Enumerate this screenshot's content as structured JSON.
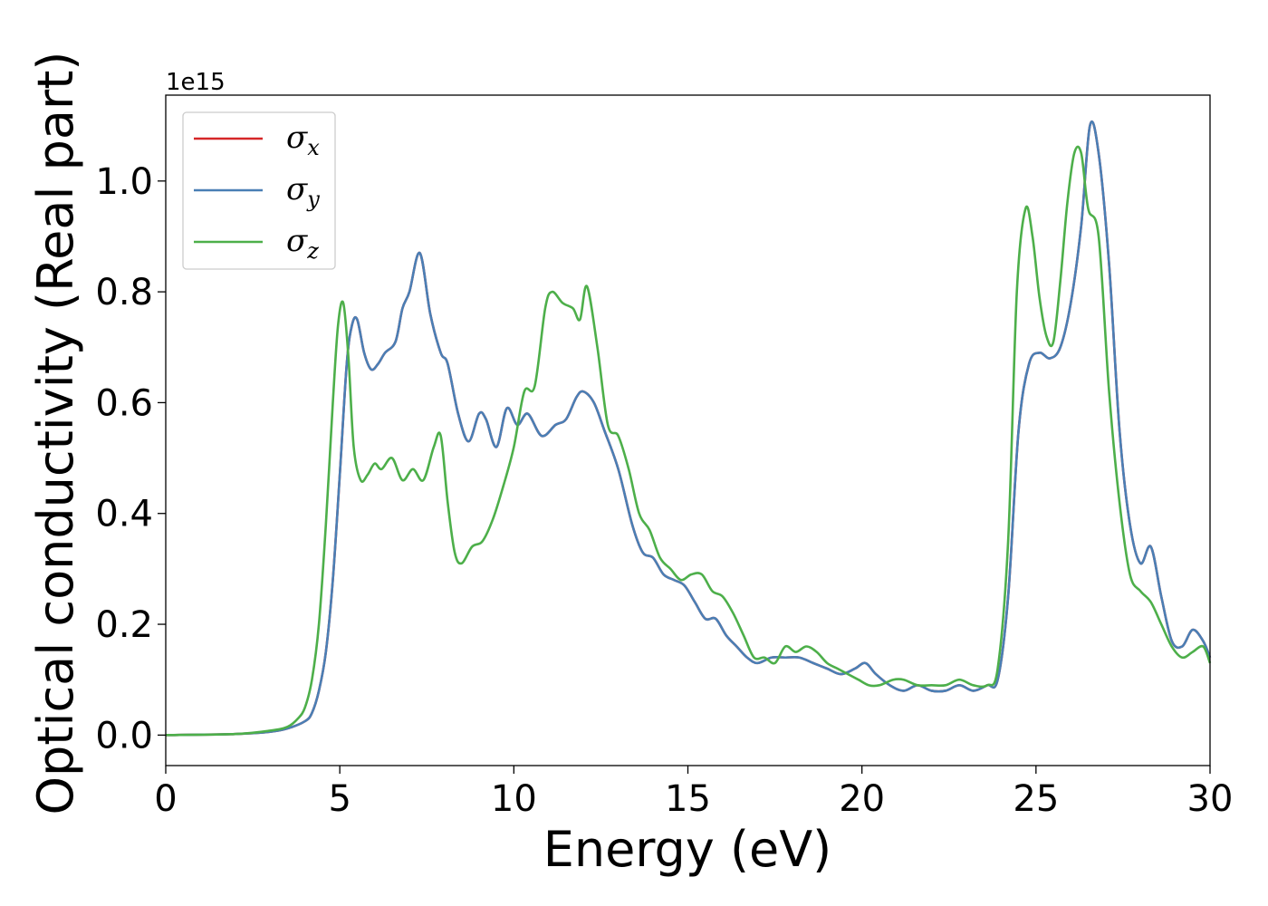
{
  "chart_data": {
    "type": "line",
    "title": "",
    "xlabel": "Energy (eV)",
    "ylabel": "Optical conductivity (Real part)",
    "y_offset_text": "1e15",
    "xlim": [
      0,
      30
    ],
    "ylim": [
      -0.055,
      1.155
    ],
    "x_ticks": [
      0,
      5,
      10,
      15,
      20,
      25,
      30
    ],
    "x_tick_labels": [
      "0",
      "5",
      "10",
      "15",
      "20",
      "25",
      "30"
    ],
    "y_ticks": [
      0.0,
      0.2,
      0.4,
      0.6,
      0.8,
      1.0
    ],
    "y_tick_labels": [
      "0.0",
      "0.2",
      "0.4",
      "0.6",
      "0.8",
      "1.0"
    ],
    "grid": false,
    "legend_position": "top-left",
    "series": [
      {
        "name": "σx",
        "legend_symbol": "σ",
        "legend_subscript": "x",
        "color": "#d62728",
        "x": [
          0,
          2,
          3,
          3.5,
          4,
          4.2,
          4.4,
          4.6,
          4.8,
          5.0,
          5.2,
          5.35,
          5.5,
          5.7,
          5.9,
          6.1,
          6.3,
          6.6,
          6.8,
          7.0,
          7.3,
          7.6,
          7.9,
          8.1,
          8.4,
          8.7,
          9.0,
          9.2,
          9.5,
          9.8,
          10.1,
          10.4,
          10.8,
          11.2,
          11.5,
          11.8,
          12.0,
          12.3,
          12.6,
          13.0,
          13.4,
          13.7,
          14.0,
          14.3,
          14.6,
          14.9,
          15.2,
          15.5,
          15.8,
          16.1,
          16.4,
          16.7,
          17.0,
          17.4,
          17.8,
          18.2,
          18.6,
          19.0,
          19.4,
          19.8,
          20.1,
          20.4,
          20.8,
          21.2,
          21.6,
          22.0,
          22.4,
          22.8,
          23.2,
          23.6,
          23.9,
          24.2,
          24.5,
          24.8,
          25.1,
          25.4,
          25.7,
          26.0,
          26.3,
          26.55,
          26.8,
          27.1,
          27.4,
          27.7,
          28.0,
          28.3,
          28.6,
          28.9,
          29.2,
          29.5,
          29.8,
          30.0
        ],
        "y": [
          0.0,
          0.002,
          0.006,
          0.012,
          0.025,
          0.04,
          0.08,
          0.15,
          0.28,
          0.47,
          0.67,
          0.74,
          0.75,
          0.69,
          0.66,
          0.67,
          0.69,
          0.71,
          0.77,
          0.8,
          0.87,
          0.76,
          0.69,
          0.67,
          0.58,
          0.53,
          0.58,
          0.57,
          0.52,
          0.59,
          0.56,
          0.58,
          0.54,
          0.56,
          0.57,
          0.61,
          0.62,
          0.6,
          0.55,
          0.48,
          0.38,
          0.33,
          0.32,
          0.29,
          0.28,
          0.27,
          0.24,
          0.21,
          0.21,
          0.18,
          0.16,
          0.14,
          0.13,
          0.14,
          0.14,
          0.14,
          0.13,
          0.12,
          0.11,
          0.12,
          0.13,
          0.11,
          0.09,
          0.08,
          0.09,
          0.08,
          0.08,
          0.09,
          0.08,
          0.09,
          0.1,
          0.25,
          0.55,
          0.67,
          0.69,
          0.68,
          0.7,
          0.78,
          0.92,
          1.1,
          1.05,
          0.85,
          0.55,
          0.38,
          0.31,
          0.34,
          0.25,
          0.17,
          0.16,
          0.19,
          0.17,
          0.14
        ]
      },
      {
        "name": "σy",
        "legend_symbol": "σ",
        "legend_subscript": "y",
        "color": "#4a7fb5",
        "x": [
          0,
          2,
          3,
          3.5,
          4,
          4.2,
          4.4,
          4.6,
          4.8,
          5.0,
          5.2,
          5.35,
          5.5,
          5.7,
          5.9,
          6.1,
          6.3,
          6.6,
          6.8,
          7.0,
          7.3,
          7.6,
          7.9,
          8.1,
          8.4,
          8.7,
          9.0,
          9.2,
          9.5,
          9.8,
          10.1,
          10.4,
          10.8,
          11.2,
          11.5,
          11.8,
          12.0,
          12.3,
          12.6,
          13.0,
          13.4,
          13.7,
          14.0,
          14.3,
          14.6,
          14.9,
          15.2,
          15.5,
          15.8,
          16.1,
          16.4,
          16.7,
          17.0,
          17.4,
          17.8,
          18.2,
          18.6,
          19.0,
          19.4,
          19.8,
          20.1,
          20.4,
          20.8,
          21.2,
          21.6,
          22.0,
          22.4,
          22.8,
          23.2,
          23.6,
          23.9,
          24.2,
          24.5,
          24.8,
          25.1,
          25.4,
          25.7,
          26.0,
          26.3,
          26.55,
          26.8,
          27.1,
          27.4,
          27.7,
          28.0,
          28.3,
          28.6,
          28.9,
          29.2,
          29.5,
          29.8,
          30.0
        ],
        "y": [
          0.0,
          0.002,
          0.006,
          0.012,
          0.025,
          0.04,
          0.08,
          0.15,
          0.28,
          0.47,
          0.67,
          0.74,
          0.75,
          0.69,
          0.66,
          0.67,
          0.69,
          0.71,
          0.77,
          0.8,
          0.87,
          0.76,
          0.69,
          0.67,
          0.58,
          0.53,
          0.58,
          0.57,
          0.52,
          0.59,
          0.56,
          0.58,
          0.54,
          0.56,
          0.57,
          0.61,
          0.62,
          0.6,
          0.55,
          0.48,
          0.38,
          0.33,
          0.32,
          0.29,
          0.28,
          0.27,
          0.24,
          0.21,
          0.21,
          0.18,
          0.16,
          0.14,
          0.13,
          0.14,
          0.14,
          0.14,
          0.13,
          0.12,
          0.11,
          0.12,
          0.13,
          0.11,
          0.09,
          0.08,
          0.09,
          0.08,
          0.08,
          0.09,
          0.08,
          0.09,
          0.1,
          0.25,
          0.55,
          0.67,
          0.69,
          0.68,
          0.7,
          0.78,
          0.92,
          1.1,
          1.05,
          0.85,
          0.55,
          0.38,
          0.31,
          0.34,
          0.25,
          0.17,
          0.16,
          0.19,
          0.17,
          0.14
        ]
      },
      {
        "name": "σz",
        "legend_symbol": "σ",
        "legend_subscript": "z",
        "color": "#4daf4a",
        "x": [
          0,
          2,
          3,
          3.5,
          3.8,
          4.0,
          4.2,
          4.4,
          4.6,
          4.8,
          4.95,
          5.1,
          5.25,
          5.4,
          5.6,
          5.8,
          6.0,
          6.2,
          6.5,
          6.8,
          7.1,
          7.4,
          7.7,
          7.9,
          8.1,
          8.3,
          8.5,
          8.8,
          9.1,
          9.4,
          9.7,
          10.0,
          10.3,
          10.6,
          10.9,
          11.1,
          11.4,
          11.7,
          11.9,
          12.1,
          12.4,
          12.7,
          13.0,
          13.3,
          13.6,
          13.9,
          14.2,
          14.5,
          14.8,
          15.1,
          15.4,
          15.7,
          16.0,
          16.3,
          16.6,
          16.9,
          17.2,
          17.5,
          17.8,
          18.1,
          18.4,
          18.7,
          19.0,
          19.3,
          19.6,
          19.9,
          20.2,
          20.5,
          20.9,
          21.2,
          21.6,
          22.0,
          22.4,
          22.8,
          23.2,
          23.6,
          23.9,
          24.2,
          24.45,
          24.7,
          24.9,
          25.1,
          25.3,
          25.5,
          25.7,
          25.9,
          26.1,
          26.3,
          26.5,
          26.8,
          27.1,
          27.4,
          27.7,
          28.0,
          28.3,
          28.6,
          28.9,
          29.2,
          29.5,
          29.8,
          30.0
        ],
        "y": [
          0.0,
          0.002,
          0.008,
          0.015,
          0.03,
          0.05,
          0.1,
          0.2,
          0.38,
          0.6,
          0.74,
          0.78,
          0.68,
          0.52,
          0.46,
          0.47,
          0.49,
          0.48,
          0.5,
          0.46,
          0.48,
          0.46,
          0.52,
          0.54,
          0.42,
          0.33,
          0.31,
          0.34,
          0.35,
          0.39,
          0.45,
          0.52,
          0.62,
          0.63,
          0.77,
          0.8,
          0.78,
          0.77,
          0.75,
          0.81,
          0.7,
          0.56,
          0.54,
          0.48,
          0.4,
          0.37,
          0.32,
          0.3,
          0.28,
          0.29,
          0.29,
          0.26,
          0.25,
          0.22,
          0.18,
          0.14,
          0.14,
          0.13,
          0.16,
          0.15,
          0.16,
          0.15,
          0.13,
          0.12,
          0.11,
          0.1,
          0.09,
          0.09,
          0.1,
          0.1,
          0.09,
          0.09,
          0.09,
          0.1,
          0.09,
          0.09,
          0.12,
          0.35,
          0.8,
          0.95,
          0.9,
          0.79,
          0.72,
          0.71,
          0.82,
          0.96,
          1.05,
          1.05,
          0.95,
          0.9,
          0.62,
          0.42,
          0.29,
          0.26,
          0.24,
          0.2,
          0.16,
          0.14,
          0.15,
          0.16,
          0.13
        ]
      }
    ]
  }
}
